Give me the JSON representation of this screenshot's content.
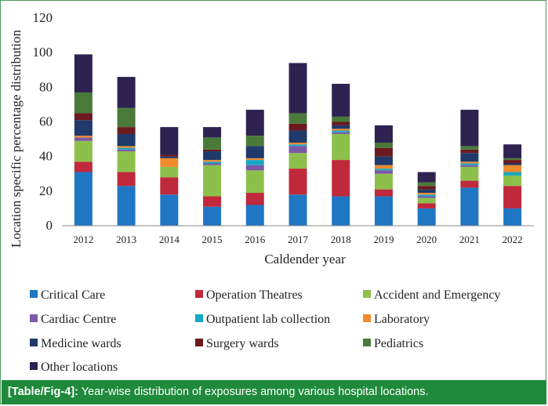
{
  "caption": {
    "ref": "[Table/Fig-4]:",
    "text": "Year-wise distribution of exposures among various hospital locations."
  },
  "chart_data": {
    "type": "bar",
    "stacked": true,
    "categories": [
      "2012",
      "2013",
      "2014",
      "2015",
      "2016",
      "2017",
      "2018",
      "2019",
      "2020",
      "2021",
      "2022"
    ],
    "xlabel": "Caldender year",
    "ylabel": "Location specific percentage distribution",
    "ylim": [
      0,
      120
    ],
    "yticks": [
      0,
      20,
      40,
      60,
      80,
      100,
      120
    ],
    "grid": false,
    "legend_position": "bottom",
    "series": [
      {
        "name": "Critical Care",
        "color": "#1f77c4",
        "values": [
          31,
          23,
          18,
          11,
          12,
          18,
          17,
          17,
          10,
          22,
          10
        ]
      },
      {
        "name": "Operation Theatres",
        "color": "#c0283c",
        "values": [
          6,
          8,
          10,
          6,
          7,
          15,
          21,
          4,
          3,
          4,
          13
        ]
      },
      {
        "name": "Accident and Emergency",
        "color": "#8dc04a",
        "values": [
          12,
          12,
          6,
          18,
          13,
          9,
          15,
          9,
          3,
          8,
          6
        ]
      },
      {
        "name": "Cardiac Centre",
        "color": "#7b59a6",
        "values": [
          2,
          1,
          0,
          1,
          3,
          4,
          1,
          2,
          1,
          1,
          0
        ]
      },
      {
        "name": "Outpatient lab collection",
        "color": "#18a6c4",
        "values": [
          0,
          1,
          0,
          1,
          3,
          1,
          1,
          1,
          1,
          1,
          2
        ]
      },
      {
        "name": "Laboratory",
        "color": "#f28a2e",
        "values": [
          1,
          1,
          5,
          1,
          1,
          1,
          1,
          2,
          1,
          1,
          4
        ]
      },
      {
        "name": "Medicine wards",
        "color": "#1f3a6b",
        "values": [
          9,
          7,
          1,
          5,
          7,
          7,
          2,
          5,
          2,
          5,
          1
        ]
      },
      {
        "name": "Surgery wards",
        "color": "#6b1a1f",
        "values": [
          4,
          4,
          1,
          1,
          0,
          4,
          2,
          5,
          2,
          2,
          2
        ]
      },
      {
        "name": "Pediatrics",
        "color": "#4a7a3a",
        "values": [
          12,
          11,
          0,
          7,
          6,
          6,
          3,
          3,
          2,
          2,
          1
        ]
      },
      {
        "name": "Other locations",
        "color": "#2e2350",
        "values": [
          22,
          18,
          16,
          6,
          15,
          29,
          19,
          10,
          6,
          21,
          8
        ]
      }
    ]
  }
}
